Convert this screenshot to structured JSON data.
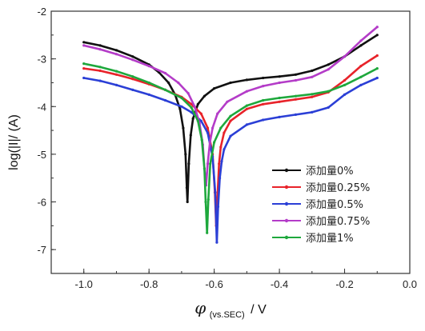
{
  "chart_data": {
    "type": "line",
    "xlabel": "φ(vs.SEC) / V",
    "xlabel_parts": {
      "symbol": "φ",
      "subscript": "(vs.SEC)",
      "suffix": "/ V"
    },
    "ylabel": "log(|I|/ (A)",
    "xlim": [
      -1.1,
      0.0
    ],
    "ylim": [
      -7.5,
      -2.0
    ],
    "x_ticks": [
      "-1.0",
      "-0.8",
      "-0.6",
      "-0.4",
      "-0.2",
      "0.0"
    ],
    "x_tick_values": [
      -1.0,
      -0.8,
      -0.6,
      -0.4,
      -0.2,
      0.0
    ],
    "y_ticks": [
      "-2",
      "-3",
      "-4",
      "-5",
      "-6",
      "-7"
    ],
    "y_tick_values": [
      -2,
      -3,
      -4,
      -5,
      -6,
      -7
    ],
    "legend_position": "lower-right",
    "grid": false,
    "series": [
      {
        "name": "添加量0%",
        "color": "#111111",
        "x": [
          -1.0,
          -0.95,
          -0.9,
          -0.85,
          -0.8,
          -0.77,
          -0.74,
          -0.72,
          -0.705,
          -0.695,
          -0.688,
          -0.684,
          -0.682,
          -0.678,
          -0.672,
          -0.665,
          -0.65,
          -0.63,
          -0.6,
          -0.55,
          -0.5,
          -0.45,
          -0.4,
          -0.35,
          -0.3,
          -0.25,
          -0.2,
          -0.15,
          -0.1
        ],
        "y": [
          -2.65,
          -2.72,
          -2.82,
          -2.95,
          -3.12,
          -3.28,
          -3.5,
          -3.75,
          -4.05,
          -4.45,
          -5.0,
          -5.7,
          -6.0,
          -5.2,
          -4.6,
          -4.25,
          -3.95,
          -3.78,
          -3.62,
          -3.5,
          -3.44,
          -3.4,
          -3.37,
          -3.33,
          -3.25,
          -3.12,
          -2.95,
          -2.72,
          -2.5
        ]
      },
      {
        "name": "添加量0.25%",
        "color": "#e8232a",
        "x": [
          -1.0,
          -0.95,
          -0.9,
          -0.85,
          -0.8,
          -0.75,
          -0.7,
          -0.67,
          -0.64,
          -0.62,
          -0.605,
          -0.598,
          -0.594,
          -0.59,
          -0.585,
          -0.58,
          -0.57,
          -0.55,
          -0.5,
          -0.45,
          -0.4,
          -0.35,
          -0.3,
          -0.25,
          -0.2,
          -0.15,
          -0.1
        ],
        "y": [
          -3.2,
          -3.25,
          -3.33,
          -3.42,
          -3.53,
          -3.65,
          -3.8,
          -3.95,
          -4.15,
          -4.45,
          -5.0,
          -5.8,
          -6.5,
          -5.9,
          -5.2,
          -4.85,
          -4.55,
          -4.3,
          -4.05,
          -3.95,
          -3.9,
          -3.85,
          -3.8,
          -3.7,
          -3.45,
          -3.15,
          -2.93
        ]
      },
      {
        "name": "添加量0.5%",
        "color": "#2b3fd6",
        "x": [
          -1.0,
          -0.95,
          -0.9,
          -0.85,
          -0.8,
          -0.75,
          -0.7,
          -0.67,
          -0.64,
          -0.62,
          -0.605,
          -0.597,
          -0.592,
          -0.588,
          -0.583,
          -0.577,
          -0.57,
          -0.55,
          -0.5,
          -0.45,
          -0.4,
          -0.35,
          -0.3,
          -0.25,
          -0.2,
          -0.15,
          -0.1
        ],
        "y": [
          -3.4,
          -3.46,
          -3.55,
          -3.65,
          -3.75,
          -3.87,
          -4.0,
          -4.12,
          -4.3,
          -4.55,
          -5.05,
          -5.8,
          -6.85,
          -6.1,
          -5.5,
          -5.15,
          -4.9,
          -4.62,
          -4.38,
          -4.28,
          -4.22,
          -4.17,
          -4.12,
          -4.02,
          -3.75,
          -3.55,
          -3.4
        ]
      },
      {
        "name": "添加量0.75%",
        "color": "#b43cc8",
        "x": [
          -1.0,
          -0.95,
          -0.9,
          -0.85,
          -0.8,
          -0.75,
          -0.71,
          -0.68,
          -0.66,
          -0.645,
          -0.635,
          -0.63,
          -0.625,
          -0.62,
          -0.613,
          -0.605,
          -0.59,
          -0.56,
          -0.5,
          -0.45,
          -0.4,
          -0.35,
          -0.3,
          -0.25,
          -0.2,
          -0.15,
          -0.1
        ],
        "y": [
          -2.72,
          -2.8,
          -2.9,
          -3.02,
          -3.15,
          -3.3,
          -3.5,
          -3.72,
          -4.0,
          -4.35,
          -4.8,
          -5.3,
          -5.65,
          -5.2,
          -4.75,
          -4.45,
          -4.15,
          -3.9,
          -3.68,
          -3.57,
          -3.5,
          -3.45,
          -3.38,
          -3.22,
          -2.95,
          -2.62,
          -2.33
        ]
      },
      {
        "name": "添加量1%",
        "color": "#1ea83c",
        "x": [
          -1.0,
          -0.95,
          -0.9,
          -0.85,
          -0.8,
          -0.75,
          -0.7,
          -0.67,
          -0.65,
          -0.638,
          -0.63,
          -0.626,
          -0.622,
          -0.618,
          -0.612,
          -0.6,
          -0.58,
          -0.55,
          -0.5,
          -0.45,
          -0.4,
          -0.35,
          -0.3,
          -0.25,
          -0.2,
          -0.15,
          -0.1
        ],
        "y": [
          -3.1,
          -3.17,
          -3.26,
          -3.37,
          -3.5,
          -3.65,
          -3.82,
          -4.02,
          -4.3,
          -4.7,
          -5.3,
          -6.0,
          -6.65,
          -5.95,
          -5.2,
          -4.75,
          -4.45,
          -4.2,
          -3.98,
          -3.87,
          -3.82,
          -3.78,
          -3.74,
          -3.68,
          -3.55,
          -3.38,
          -3.2
        ]
      }
    ]
  }
}
